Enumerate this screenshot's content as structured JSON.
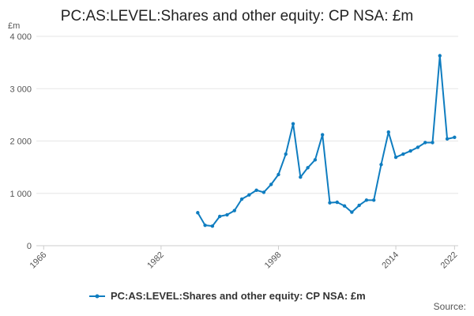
{
  "chart_data": {
    "type": "line",
    "title": "PC:AS:LEVEL:Shares and other equity: CP NSA: £m",
    "ylabel": "£m",
    "xlabel": "",
    "xlim": [
      1965,
      2022.5
    ],
    "ylim": [
      0,
      4000
    ],
    "x_ticks": [
      1966,
      1982,
      1998,
      2014,
      2022
    ],
    "y_ticks": [
      {
        "value": 0,
        "label": "0"
      },
      {
        "value": 1000,
        "label": "1 000"
      },
      {
        "value": 2000,
        "label": "2 000"
      },
      {
        "value": 3000,
        "label": "3 000"
      },
      {
        "value": 4000,
        "label": "4 000"
      }
    ],
    "grid": true,
    "legend_position": "bottom",
    "source_label": "Source:",
    "colors": {
      "series": "#1f77b4",
      "line": "#0f7dc0"
    },
    "series": [
      {
        "name": "PC:AS:LEVEL:Shares and other equity: CP NSA: £m",
        "x": [
          1987,
          1988,
          1989,
          1990,
          1991,
          1992,
          1993,
          1994,
          1995,
          1996,
          1997,
          1998,
          1999,
          2000,
          2001,
          2002,
          2003,
          2004,
          2005,
          2006,
          2007,
          2008,
          2009,
          2010,
          2011,
          2012,
          2013,
          2014,
          2015,
          2016,
          2017,
          2018,
          2019,
          2020,
          2021,
          2022
        ],
        "values": [
          630,
          390,
          375,
          560,
          590,
          670,
          890,
          970,
          1060,
          1020,
          1170,
          1360,
          1750,
          2330,
          1310,
          1490,
          1640,
          2120,
          820,
          830,
          760,
          640,
          770,
          870,
          870,
          1550,
          2170,
          1690,
          1750,
          1810,
          1880,
          1970,
          1970,
          3630,
          2040,
          2070
        ]
      }
    ]
  }
}
